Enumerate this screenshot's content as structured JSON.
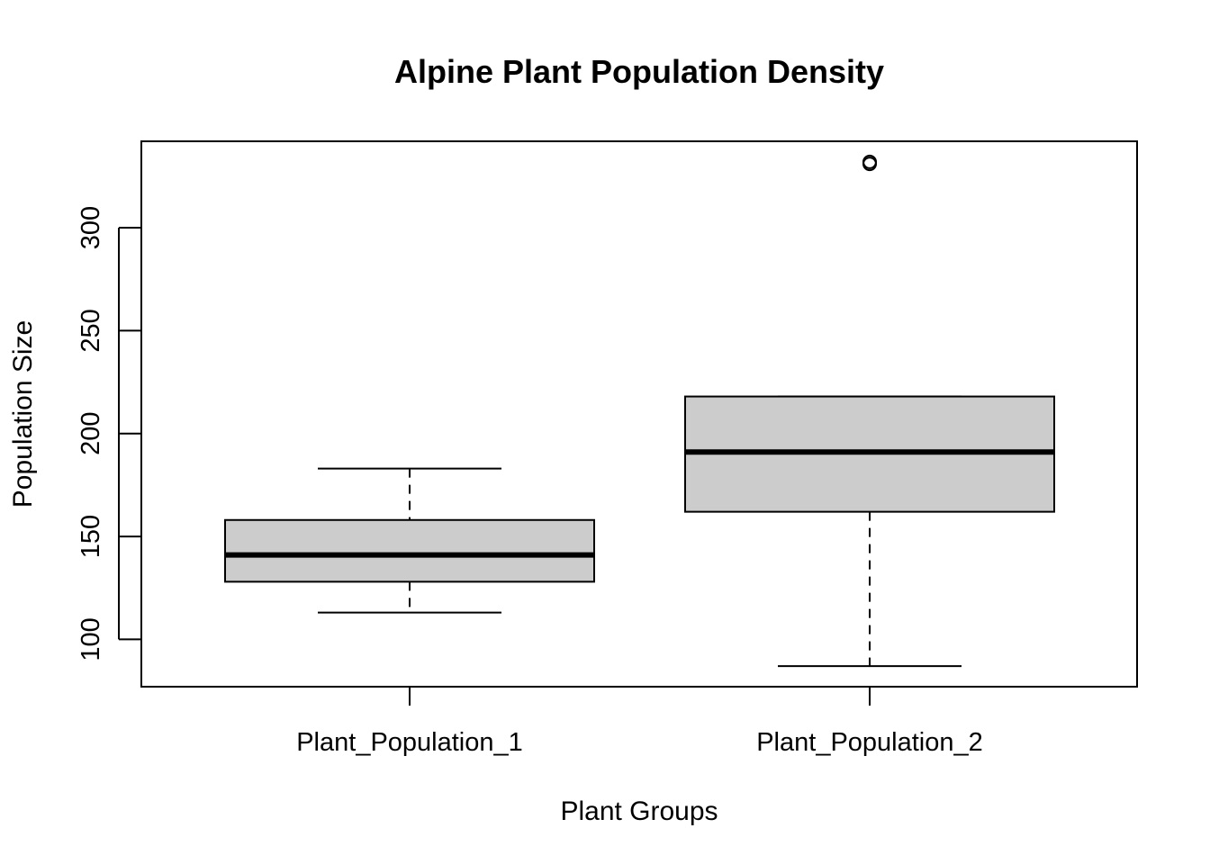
{
  "chart_data": {
    "type": "box",
    "title": "Alpine Plant Population Density",
    "xlabel": "Plant Groups",
    "ylabel": "Population Size",
    "ylim": [
      77,
      342
    ],
    "yticks": [
      100,
      150,
      200,
      250,
      300
    ],
    "categories": [
      "Plant_Population_1",
      "Plant_Population_2"
    ],
    "boxes": [
      {
        "name": "Plant_Population_1",
        "whisker_low": 113,
        "q1": 128,
        "median": 141,
        "q3": 158,
        "whisker_high": 183,
        "outliers": []
      },
      {
        "name": "Plant_Population_2",
        "whisker_low": 87,
        "q1": 162,
        "median": 191,
        "q3": 218,
        "whisker_high": 218,
        "outliers": [
          331,
          332
        ]
      }
    ],
    "box_fill": "#cccccc",
    "grid": false,
    "legend": "none"
  }
}
